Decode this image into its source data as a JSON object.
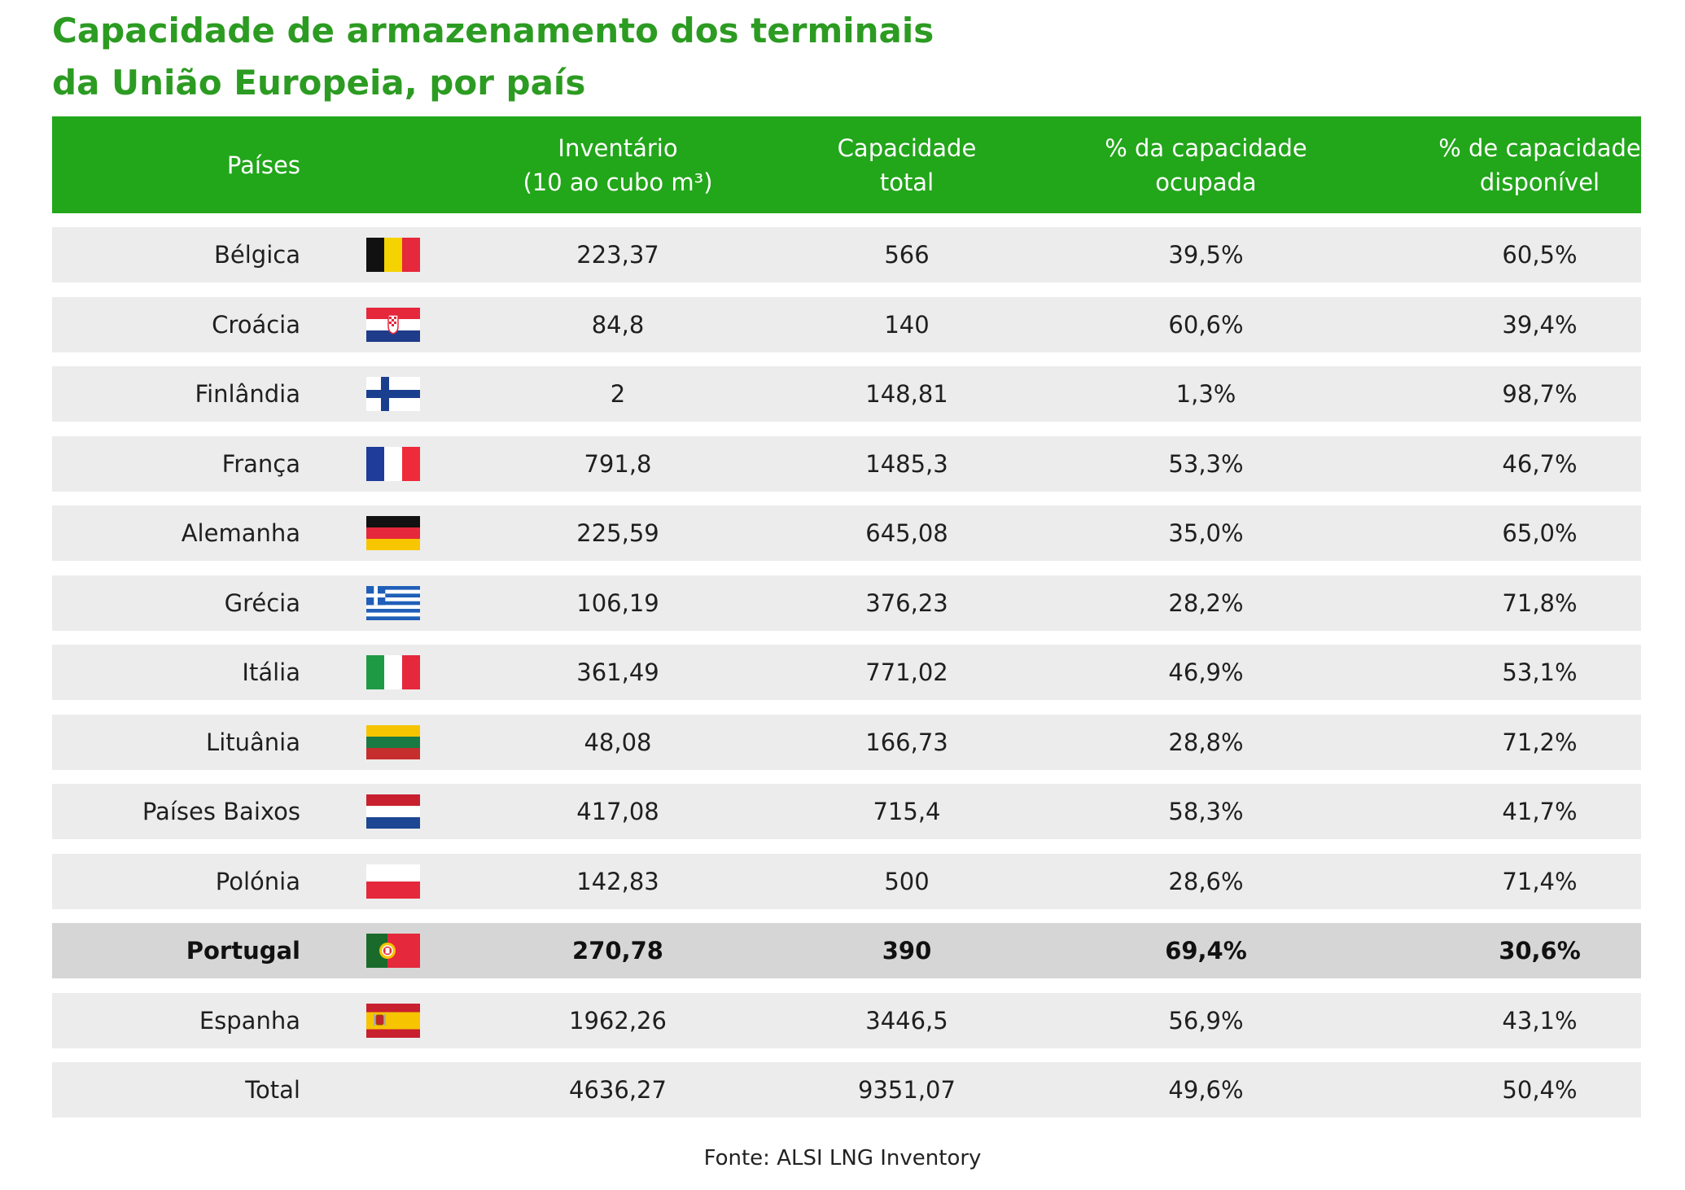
{
  "title": {
    "line1": "Capacidade de armazenamento dos terminais",
    "line2": "da União Europeia, por país"
  },
  "source": "Fonte: ALSI LNG Inventory",
  "colors": {
    "title_green": "#2c9b22",
    "header_green": "#22a61a",
    "row_bg": "#ececec",
    "highlight_bg": "#d6d6d6"
  },
  "chart_data": {
    "type": "table",
    "columns": [
      "Países",
      "Inventário\n(10 ao cubo m³)",
      "Capacidade\ntotal",
      "% da capacidade\nocupada",
      "% de capacidade\ndisponível"
    ],
    "rows": [
      {
        "country": "Bélgica",
        "flag": "belgium-flag",
        "inventory": "223,37",
        "capacity": "566",
        "occupied": "39,5%",
        "available": "60,5%"
      },
      {
        "country": "Croácia",
        "flag": "croatia-flag",
        "inventory": "84,8",
        "capacity": "140",
        "occupied": "60,6%",
        "available": "39,4%"
      },
      {
        "country": "Finlândia",
        "flag": "finland-flag",
        "inventory": "2",
        "capacity": "148,81",
        "occupied": "1,3%",
        "available": "98,7%"
      },
      {
        "country": "França",
        "flag": "france-flag",
        "inventory": "791,8",
        "capacity": "1485,3",
        "occupied": "53,3%",
        "available": "46,7%"
      },
      {
        "country": "Alemanha",
        "flag": "germany-flag",
        "inventory": "225,59",
        "capacity": "645,08",
        "occupied": "35,0%",
        "available": "65,0%"
      },
      {
        "country": "Grécia",
        "flag": "greece-flag",
        "inventory": "106,19",
        "capacity": "376,23",
        "occupied": "28,2%",
        "available": "71,8%"
      },
      {
        "country": "Itália",
        "flag": "italy-flag",
        "inventory": "361,49",
        "capacity": "771,02",
        "occupied": "46,9%",
        "available": "53,1%"
      },
      {
        "country": "Lituânia",
        "flag": "lithuania-flag",
        "inventory": "48,08",
        "capacity": "166,73",
        "occupied": "28,8%",
        "available": "71,2%"
      },
      {
        "country": "Países Baixos",
        "flag": "netherlands-flag",
        "inventory": "417,08",
        "capacity": "715,4",
        "occupied": "58,3%",
        "available": "41,7%"
      },
      {
        "country": "Polónia",
        "flag": "poland-flag",
        "inventory": "142,83",
        "capacity": "500",
        "occupied": "28,6%",
        "available": "71,4%"
      },
      {
        "country": "Portugal",
        "flag": "portugal-flag",
        "inventory": "270,78",
        "capacity": "390",
        "occupied": "69,4%",
        "available": "30,6%",
        "highlighted": true
      },
      {
        "country": "Espanha",
        "flag": "spain-flag",
        "inventory": "1962,26",
        "capacity": "3446,5",
        "occupied": "56,9%",
        "available": "43,1%"
      },
      {
        "country": "Total",
        "flag": "",
        "inventory": "4636,27",
        "capacity": "9351,07",
        "occupied": "49,6%",
        "available": "50,4%"
      }
    ]
  }
}
